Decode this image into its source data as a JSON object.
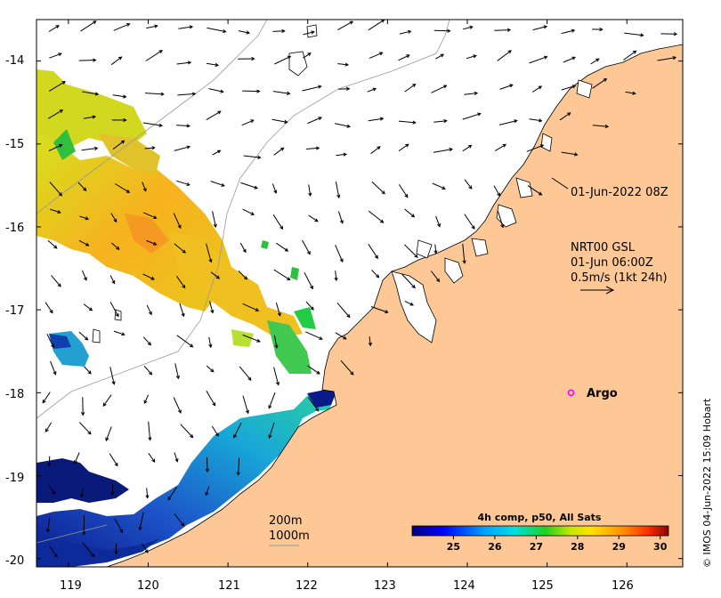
{
  "map": {
    "x_ticks": [
      "119",
      "120",
      "121",
      "122",
      "123",
      "124",
      "125",
      "126"
    ],
    "y_ticks": [
      "-14",
      "-15",
      "-16",
      "-17",
      "-18",
      "-19",
      "-20"
    ],
    "lon_range": [
      118.6,
      126.7
    ],
    "lat_range": [
      -20.1,
      -13.5
    ]
  },
  "annotations": {
    "timestamp": "01-Jun-2022 08Z",
    "product_line1": "NRT00 GSL",
    "product_line2": "01-Jun 06:00Z",
    "product_line3": "0.5m/s (1kt 24h)",
    "isobath_200": "200m",
    "isobath_1000": "1000m"
  },
  "colorbar": {
    "title": "4h comp, p50, All Sats",
    "ticks": [
      "25",
      "26",
      "27",
      "28",
      "29",
      "30"
    ],
    "range": [
      24,
      30.2
    ]
  },
  "argo": {
    "label": "Argo",
    "lon": 125.3,
    "lat": -18.0,
    "color": "#ff00ff"
  },
  "credit": "© IMOS 04-Jun-2022 15:09 Hobart",
  "colors": {
    "land": "#fdc896",
    "coast": "#000000",
    "isobath": "#999999"
  }
}
